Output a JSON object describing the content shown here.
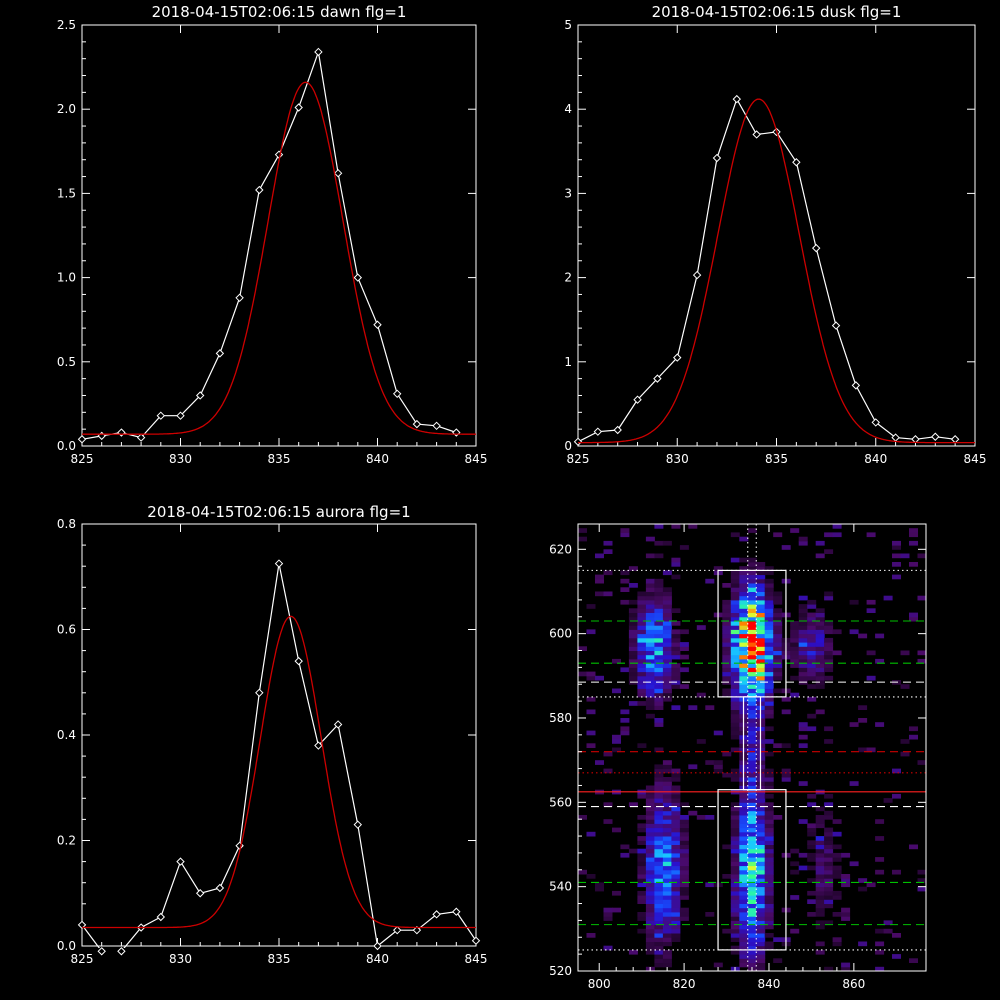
{
  "chart_data": [
    {
      "type": "line",
      "title": "2018-04-15T02:06:15 dawn flg=1",
      "xlim": [
        825,
        845
      ],
      "ylim": [
        0,
        2.5
      ],
      "xticks": [
        825,
        830,
        835,
        840,
        845
      ],
      "yticks": [
        0.0,
        0.5,
        1.0,
        1.5,
        2.0,
        2.5
      ],
      "ytick_labels": [
        "0.0",
        "0.5",
        "1.0",
        "1.5",
        "2.0",
        "2.5"
      ],
      "series": [
        {
          "kind": "data",
          "color": "#ffffff",
          "marker": "diamond",
          "x": [
            825,
            826,
            827,
            828,
            829,
            830,
            831,
            832,
            833,
            834,
            835,
            836,
            837,
            838,
            839,
            840,
            841,
            842,
            843,
            844
          ],
          "y": [
            0.04,
            0.06,
            0.08,
            0.05,
            0.18,
            0.18,
            0.3,
            0.55,
            0.88,
            1.52,
            1.73,
            2.01,
            2.34,
            1.62,
            1.0,
            0.72,
            0.31,
            0.13,
            0.12,
            0.08
          ]
        },
        {
          "kind": "fit",
          "color": "#cc0000",
          "amp": 2.09,
          "center": 836.35,
          "sigma": 1.9,
          "offset": 0.07,
          "x_start": 825,
          "x_end": 845
        }
      ]
    },
    {
      "type": "line",
      "title": "2018-04-15T02:06:15 dusk flg=1",
      "xlim": [
        825,
        845
      ],
      "ylim": [
        0,
        5
      ],
      "xticks": [
        825,
        830,
        835,
        840,
        845
      ],
      "yticks": [
        0,
        1,
        2,
        3,
        4,
        5
      ],
      "ytick_labels": [
        "0",
        "1",
        "2",
        "3",
        "4",
        "5"
      ],
      "series": [
        {
          "kind": "data",
          "color": "#ffffff",
          "marker": "diamond",
          "x": [
            825,
            826,
            827,
            828,
            829,
            830,
            831,
            832,
            833,
            834,
            835,
            836,
            837,
            838,
            839,
            840,
            841,
            842,
            843,
            844
          ],
          "y": [
            0.05,
            0.17,
            0.19,
            0.55,
            0.8,
            1.05,
            2.03,
            3.42,
            4.12,
            3.7,
            3.73,
            3.37,
            2.35,
            1.43,
            0.72,
            0.28,
            0.1,
            0.08,
            0.11,
            0.08
          ]
        },
        {
          "kind": "fit",
          "color": "#cc0000",
          "amp": 4.08,
          "center": 834.1,
          "sigma": 2.05,
          "offset": 0.04,
          "x_start": 825,
          "x_end": 845
        }
      ]
    },
    {
      "type": "line",
      "title": "2018-04-15T02:06:15 aurora flg=1",
      "xlim": [
        825,
        845
      ],
      "ylim": [
        0,
        0.8
      ],
      "xticks": [
        825,
        830,
        835,
        840,
        845
      ],
      "yticks": [
        0.0,
        0.2,
        0.4,
        0.6,
        0.8
      ],
      "ytick_labels": [
        "0.0",
        "0.2",
        "0.4",
        "0.6",
        "0.8"
      ],
      "series": [
        {
          "kind": "data",
          "color": "#ffffff",
          "marker": "diamond",
          "x": [
            825,
            826,
            827,
            828,
            829,
            830,
            831,
            832,
            833,
            834,
            835,
            836,
            837,
            838,
            839,
            840,
            841,
            842,
            843,
            844,
            845
          ],
          "y": [
            0.04,
            -0.01,
            -0.01,
            0.035,
            0.055,
            0.16,
            0.1,
            0.11,
            0.19,
            0.48,
            0.725,
            0.54,
            0.38,
            0.42,
            0.23,
            0.0,
            0.03,
            0.03,
            0.06,
            0.065,
            0.01
          ]
        },
        {
          "kind": "fit",
          "color": "#cc0000",
          "amp": 0.59,
          "center": 835.6,
          "sigma": 1.55,
          "offset": 0.035,
          "x_start": 825,
          "x_end": 845
        }
      ]
    },
    {
      "type": "heatmap",
      "title": "",
      "xlim": [
        795,
        877
      ],
      "ylim": [
        520,
        626
      ],
      "xticks": [
        800,
        820,
        840,
        860
      ],
      "yticks": [
        520,
        540,
        560,
        580,
        600,
        620
      ],
      "ytick_labels": [
        "520",
        "540",
        "560",
        "580",
        "600",
        "620"
      ],
      "colormap": [
        "#000000",
        "#4a0a66",
        "#2a10cc",
        "#1650ff",
        "#18c8ff",
        "#30ff90",
        "#d8ff30",
        "#ff8000",
        "#ff0000"
      ],
      "cell": [
        2,
        1
      ],
      "blobs": [
        {
          "x": 836,
          "y": 597,
          "sx": 3.0,
          "sy": 9,
          "amp": 7.5
        },
        {
          "x": 836,
          "y": 544,
          "sx": 2.5,
          "sy": 13,
          "amp": 4.6
        },
        {
          "x": 813,
          "y": 597,
          "sx": 3.0,
          "sy": 8,
          "amp": 3.4
        },
        {
          "x": 815,
          "y": 545,
          "sx": 3.0,
          "sy": 12,
          "amp": 3.0
        },
        {
          "x": 850,
          "y": 597,
          "sx": 3.0,
          "sy": 6,
          "amp": 1.8
        },
        {
          "x": 853,
          "y": 545,
          "sx": 3.0,
          "sy": 10,
          "amp": 1.0
        },
        {
          "x": 836,
          "y": 572,
          "sx": 2.0,
          "sy": 6,
          "amp": 1.2
        }
      ],
      "boxes": [
        {
          "x0": 828,
          "x1": 844,
          "y0": 585,
          "y1": 615,
          "color": "#ffffff"
        },
        {
          "x0": 828,
          "x1": 844,
          "y0": 525,
          "y1": 563,
          "color": "#ffffff"
        },
        {
          "x0": 834,
          "x1": 838,
          "y0": 563,
          "y1": 585,
          "color": "#ffffff"
        }
      ],
      "hlines": [
        {
          "y": 615,
          "color": "#ffffff",
          "dash": "dotted"
        },
        {
          "y": 585,
          "color": "#ffffff",
          "dash": "dotted"
        },
        {
          "y": 525,
          "color": "#ffffff",
          "dash": "dotted"
        },
        {
          "y": 603,
          "color": "#00c000",
          "dash": "dashed"
        },
        {
          "y": 593,
          "color": "#00c000",
          "dash": "dashed"
        },
        {
          "y": 541,
          "color": "#00c000",
          "dash": "dashed"
        },
        {
          "y": 531,
          "color": "#00c000",
          "dash": "dashed"
        },
        {
          "y": 588.5,
          "color": "#ffffff",
          "dash": "dashed"
        },
        {
          "y": 559,
          "color": "#ffffff",
          "dash": "dashed"
        },
        {
          "y": 572,
          "color": "#cc0000",
          "dash": "dashed"
        },
        {
          "y": 562.5,
          "color": "#ff2020",
          "dash": "solid"
        },
        {
          "y": 567,
          "color": "#cc0000",
          "dash": "dotted"
        }
      ],
      "vlines": [
        {
          "x": 835,
          "color": "#ffffff",
          "dash": "dotted"
        },
        {
          "x": 837,
          "color": "#ffffff",
          "dash": "dotted"
        }
      ]
    }
  ]
}
